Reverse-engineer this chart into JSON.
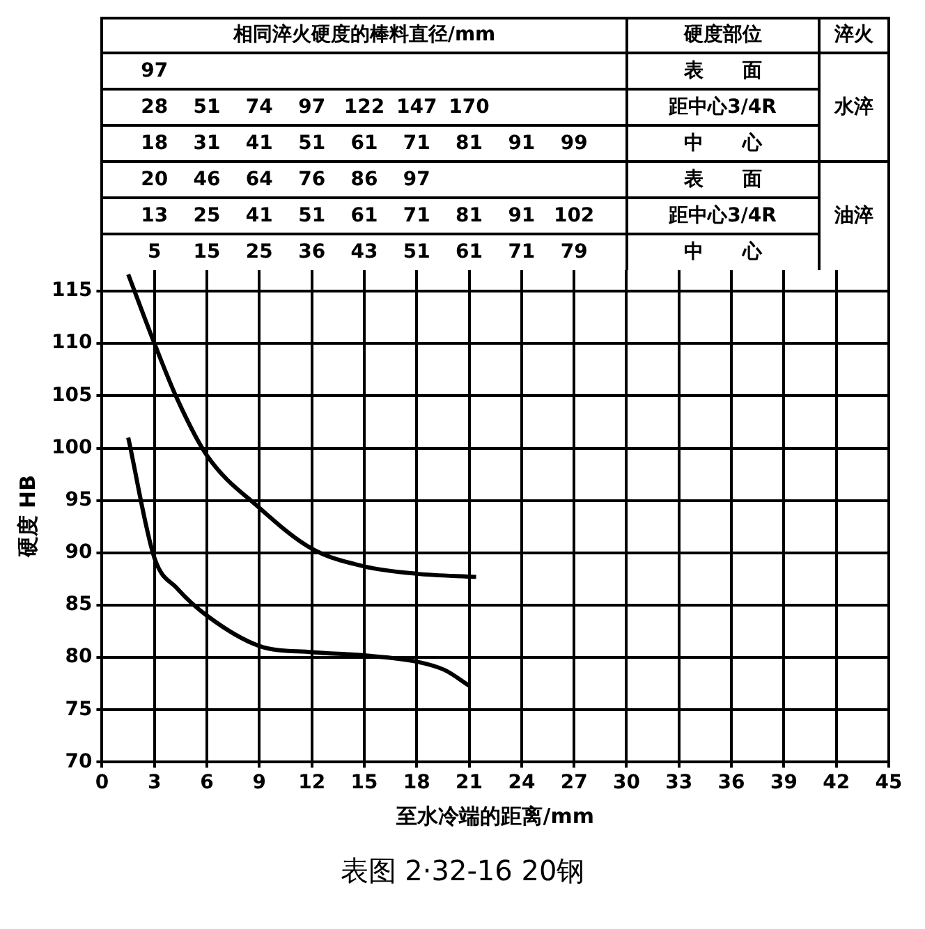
{
  "chart_data": {
    "type": "line",
    "title": "表图 2·32-16 20钢",
    "xlabel": "至水冷端的距离/mm",
    "ylabel": "硬度 HB",
    "annotations": [
      "相同淬火硬度的棒料直径/mm",
      "硬度部位",
      "淬火",
      "97",
      "28 51 74 97 122 147 170",
      "18 31 41 51 61 71 81 91 99",
      "20 46 64 76 86 97",
      "13 25 41 51 61 71 81 91 102",
      "5 15 25 36 43 51 61 71 79",
      "表　　面",
      "距中心3/4R",
      "中　　心",
      "表　　面",
      "距中心3/4R",
      "中　　心",
      "水淬",
      "油淬"
    ],
    "series": [
      {
        "color": "#000000",
        "x": [
          1.5,
          3,
          4.3,
          6,
          9,
          12,
          15,
          18,
          21.4
        ],
        "values": [
          116.6,
          110,
          104.7,
          99.3,
          94.3,
          90.4,
          88.7,
          88,
          87.7
        ]
      },
      {
        "color": "#000000",
        "x": [
          1.5,
          3,
          4.3,
          6,
          9,
          12,
          15,
          18,
          19.6,
          21
        ],
        "values": [
          101,
          89.5,
          86.6,
          84,
          81.1,
          80.5,
          80.2,
          79.6,
          78.8,
          77.3
        ]
      }
    ],
    "xlim": [
      0,
      45
    ],
    "xticks": [
      0,
      3,
      6,
      9,
      12,
      15,
      18,
      21,
      24,
      27,
      30,
      33,
      36,
      39,
      42,
      45
    ],
    "ylim": [
      70,
      117
    ],
    "yticks": [
      70,
      75,
      80,
      85,
      90,
      95,
      100,
      105,
      110,
      115
    ],
    "grid": true,
    "marker": "none",
    "line_style": "solid"
  }
}
